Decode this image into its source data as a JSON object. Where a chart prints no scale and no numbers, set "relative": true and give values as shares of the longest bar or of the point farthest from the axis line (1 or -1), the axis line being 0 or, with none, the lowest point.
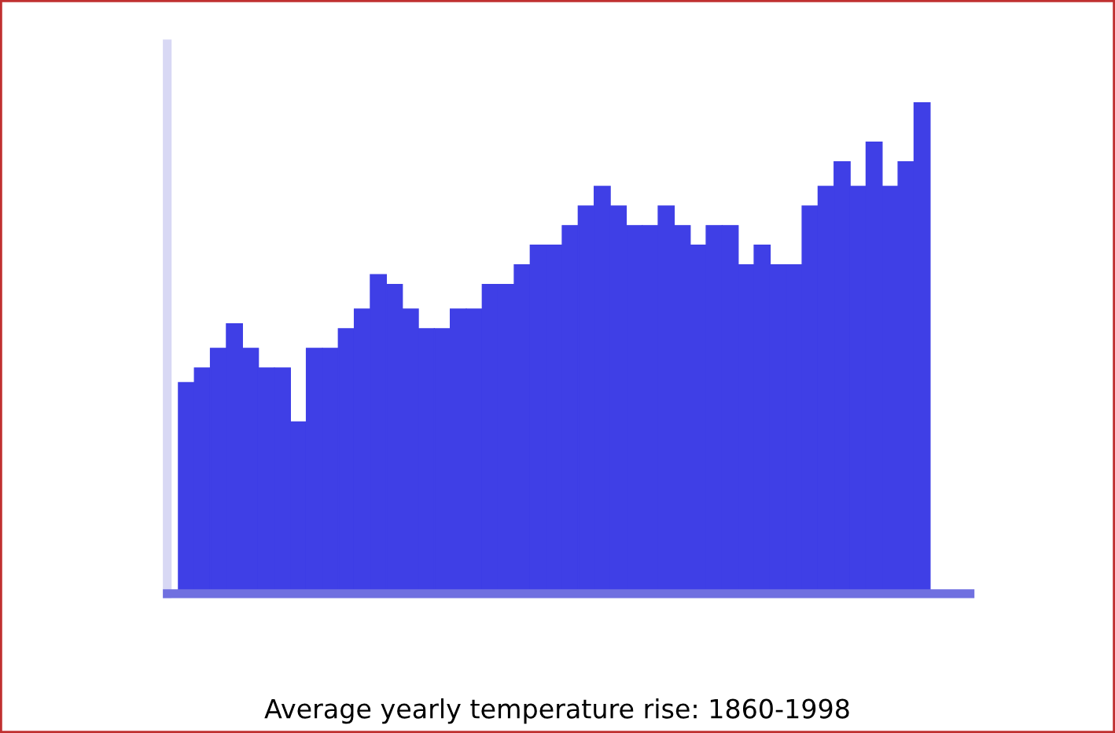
{
  "chart_data": {
    "type": "bar",
    "title": "Average yearly temperature rise: 1860-1998",
    "relative": true,
    "color": "#3f3fe6",
    "categories": [
      null,
      null,
      null,
      null,
      null,
      null,
      null,
      null,
      null,
      null,
      null,
      null,
      null,
      null,
      null,
      null,
      null,
      null,
      null,
      null,
      null,
      null,
      null,
      null,
      null,
      null,
      null,
      null,
      null,
      null,
      null,
      null,
      null,
      null,
      null,
      null,
      null,
      null,
      null,
      null,
      null,
      null,
      null,
      null,
      null,
      null,
      null
    ],
    "values": [
      0.43,
      0.46,
      0.5,
      0.55,
      0.5,
      0.46,
      0.46,
      0.35,
      0.5,
      0.5,
      0.54,
      0.58,
      0.65,
      0.63,
      0.58,
      0.54,
      0.54,
      0.58,
      0.58,
      0.63,
      0.63,
      0.67,
      0.71,
      0.71,
      0.75,
      0.79,
      0.83,
      0.79,
      0.75,
      0.75,
      0.79,
      0.75,
      0.71,
      0.75,
      0.75,
      0.67,
      0.71,
      0.67,
      0.67,
      0.79,
      0.83,
      0.88,
      0.83,
      0.92,
      0.83,
      0.88,
      1
    ],
    "grid": false,
    "legend": false
  }
}
